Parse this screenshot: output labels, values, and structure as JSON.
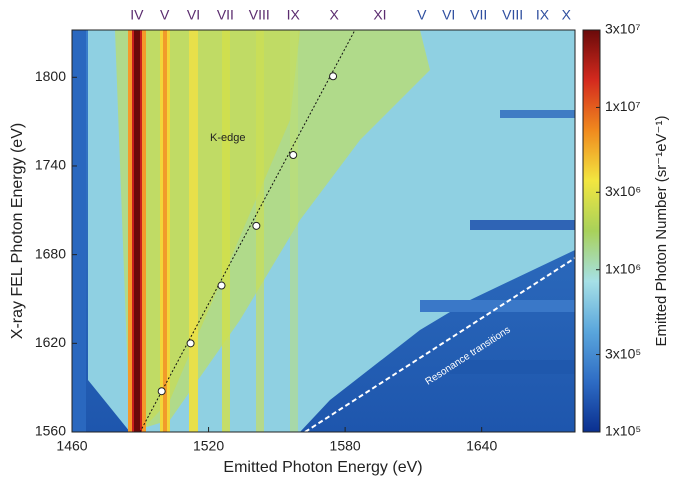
{
  "chart_data": {
    "type": "scatter",
    "xlabel": "Emitted Photon Energy  (eV)",
    "ylabel": "X-ray FEL Photon Energy  (eV)",
    "xlim": [
      1460,
      1681
    ],
    "ylim": [
      1560,
      1832
    ],
    "xticks": [
      1460,
      1520,
      1580,
      1640
    ],
    "yticks": [
      1560,
      1620,
      1680,
      1740,
      1800
    ],
    "series": [
      {
        "name": "K-edge",
        "color": "#ffffff",
        "x": [
          1499.4,
          1512.1,
          1525.7,
          1541.0,
          1557.2,
          1574.7
        ],
        "values": [
          1587.6,
          1620,
          1659.1,
          1699.5,
          1747.4,
          1800.7
        ]
      }
    ],
    "annotations": [
      "Resonance transitions"
    ],
    "top_labels": [
      {
        "color": "#5b2c6f",
        "labels": [
          "IV",
          "V",
          "VI",
          "VII",
          "VIII",
          "IX",
          "X",
          "XI"
        ],
        "x": [
          1488.5,
          1500.7,
          1513.4,
          1527.4,
          1542.3,
          1557.2,
          1575.2,
          1595.3
        ]
      },
      {
        "color": "#2f4f9f",
        "labels": [
          "V",
          "VI",
          "VII",
          "VIII",
          "IX",
          "X"
        ],
        "x": [
          1613.7,
          1625.5,
          1638.7,
          1653.6,
          1666.7,
          1677.2
        ]
      }
    ],
    "colorbar": {
      "label": "Emitted Photon Number  (sr⁻¹eV⁻¹)",
      "scale": "log",
      "lim": [
        100000,
        30000000
      ],
      "ticks": [
        {
          "value": 100000,
          "label": "1x10⁵"
        },
        {
          "value": 300000,
          "label": "3x10⁵"
        },
        {
          "value": 1000000,
          "label": "1x10⁶"
        },
        {
          "value": 3000000,
          "label": "3x10⁶"
        },
        {
          "value": 10000000,
          "label": "1x10⁷"
        },
        {
          "value": 30000000,
          "label": "3x10⁷"
        }
      ],
      "colormap": [
        "#0a2f8f",
        "#2e6cc4",
        "#5aa6dc",
        "#a6e0e6",
        "#a8d15a",
        "#f2e640",
        "#f08a1e",
        "#d42a1e",
        "#6a0a0a"
      ]
    }
  }
}
